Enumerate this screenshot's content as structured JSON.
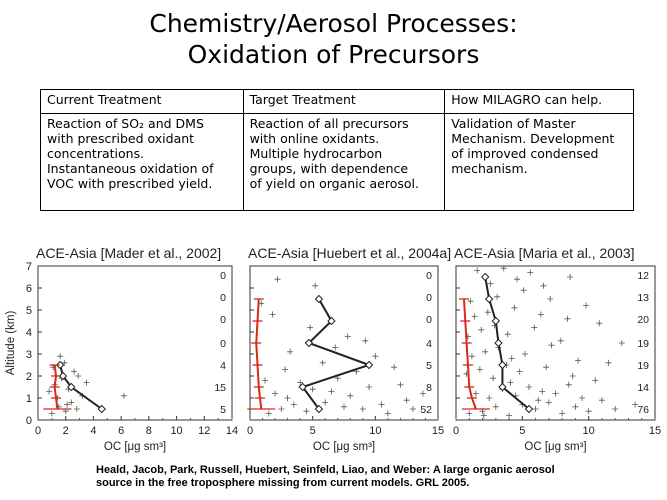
{
  "title": {
    "line1": "Chemistry/Aerosol Processes:",
    "line2": "Oxidation of Precursors"
  },
  "table": {
    "headers": [
      "Current Treatment",
      "Target Treatment",
      "How MILAGRO can help."
    ],
    "rows": [
      [
        [
          "Reaction of SO₂ and DMS",
          "with prescribed oxidant",
          "concentrations.",
          "Instantaneous oxidation of",
          "VOC with prescribed yield."
        ],
        [
          "Reaction of all precursors",
          "with online oxidants.",
          "Multiple hydrocarbon",
          "groups, with dependence",
          "of yield on organic aerosol."
        ],
        [
          "Validation of Master",
          "Mechanism. Development",
          "of improved condensed",
          "mechanism."
        ]
      ]
    ]
  },
  "colors": {
    "model": "#d62a1a",
    "observed": "#222222",
    "points": "#555555"
  },
  "chart_data": [
    {
      "type": "scatter",
      "title": "ACE-Asia [Mader et al., 2002]",
      "xlabel": "OC [μg sm³]",
      "ylabel": "Altitude (km)",
      "xlim": [
        0,
        14
      ],
      "ylim": [
        0,
        7
      ],
      "xticks": [
        "0",
        "2",
        "4",
        "6",
        "8",
        "10",
        "12",
        "14"
      ],
      "yticks": [
        "0",
        "1",
        "2",
        "3",
        "4",
        "5",
        "6",
        "7"
      ],
      "counts": [
        {
          "alt": 6.6,
          "n": "0"
        },
        {
          "alt": 5.6,
          "n": "0"
        },
        {
          "alt": 4.6,
          "n": "0"
        },
        {
          "alt": 3.5,
          "n": "0"
        },
        {
          "alt": 2.5,
          "n": "4"
        },
        {
          "alt": 1.5,
          "n": "15"
        },
        {
          "alt": 0.5,
          "n": "5"
        }
      ],
      "observed": {
        "x": [
          4.6,
          2.4,
          1.8,
          1.6
        ],
        "y": [
          0.5,
          1.5,
          2.0,
          2.5
        ]
      },
      "model": {
        "x": [
          1.4,
          1.3,
          1.2,
          1.3,
          1.2
        ],
        "y": [
          0.5,
          1.0,
          1.5,
          2.0,
          2.5
        ]
      },
      "scatter": {
        "x": [
          1.0,
          1.5,
          2.0,
          2.4,
          2.8,
          3.2,
          0.8,
          1.2,
          1.7,
          2.2,
          2.6,
          3.5,
          1.1,
          1.9,
          2.9,
          1.4,
          2.1,
          6.2,
          1.6
        ],
        "y": [
          0.3,
          0.6,
          0.4,
          0.8,
          0.5,
          1.1,
          1.3,
          1.6,
          1.9,
          1.4,
          2.2,
          1.7,
          2.4,
          2.6,
          2.0,
          1.0,
          0.7,
          1.1,
          2.9
        ]
      }
    },
    {
      "type": "scatter",
      "title": "ACE-Asia [Huebert et al., 2004a]",
      "xlabel": "OC [μg sm³]",
      "ylabel": "",
      "xlim": [
        0,
        15
      ],
      "ylim": [
        0,
        7
      ],
      "xticks": [
        "0",
        "5",
        "10",
        "15"
      ],
      "yticks": [],
      "counts": [
        {
          "alt": 6.6,
          "n": "0"
        },
        {
          "alt": 5.6,
          "n": "0"
        },
        {
          "alt": 4.6,
          "n": "0"
        },
        {
          "alt": 3.5,
          "n": "4"
        },
        {
          "alt": 2.5,
          "n": "5"
        },
        {
          "alt": 1.5,
          "n": "8"
        },
        {
          "alt": 0.5,
          "n": "52"
        }
      ],
      "observed": {
        "x": [
          5.5,
          4.2,
          9.5,
          4.7,
          6.5,
          5.5
        ],
        "y": [
          0.5,
          1.5,
          2.5,
          3.5,
          4.5,
          5.5
        ]
      },
      "model": {
        "x": [
          0.9,
          0.8,
          0.7,
          0.6,
          0.5,
          0.6,
          0.7
        ],
        "y": [
          0.5,
          1.0,
          1.5,
          2.5,
          3.5,
          4.5,
          5.5
        ]
      },
      "scatter": {
        "x": [
          1.5,
          2.5,
          3.5,
          4.5,
          6.0,
          7.5,
          9.0,
          11.0,
          12.5,
          2.0,
          3.0,
          5.0,
          6.5,
          8.0,
          10.5,
          13.0,
          1.2,
          4.0,
          7.0,
          9.5,
          12.0,
          2.8,
          5.8,
          8.5,
          11.5,
          3.2,
          6.8,
          10.0,
          4.8,
          7.8,
          1.8,
          13.8,
          0.9,
          2.2,
          5.2,
          9.2
        ],
        "y": [
          0.3,
          0.5,
          0.7,
          0.4,
          0.8,
          0.6,
          0.5,
          0.3,
          0.9,
          1.2,
          1.0,
          1.4,
          1.3,
          1.1,
          0.7,
          0.5,
          1.8,
          1.7,
          1.9,
          1.5,
          1.6,
          2.3,
          2.6,
          2.2,
          2.4,
          3.1,
          3.3,
          2.9,
          4.2,
          3.8,
          4.8,
          1.2,
          5.3,
          6.4,
          6.1,
          3.6
        ]
      }
    },
    {
      "type": "scatter",
      "title": "ACE-Asia [Maria et al., 2003]",
      "xlabel": "OC [μg sm³]",
      "ylabel": "",
      "xlim": [
        0,
        15
      ],
      "ylim": [
        0,
        7
      ],
      "xticks": [
        "0",
        "5",
        "10",
        "15"
      ],
      "yticks": [],
      "counts": [
        {
          "alt": 6.6,
          "n": "12"
        },
        {
          "alt": 5.6,
          "n": "13"
        },
        {
          "alt": 4.6,
          "n": "20"
        },
        {
          "alt": 3.5,
          "n": "19"
        },
        {
          "alt": 2.5,
          "n": "19"
        },
        {
          "alt": 1.5,
          "n": "14"
        },
        {
          "alt": 0.5,
          "n": "76"
        }
      ],
      "observed": {
        "x": [
          5.5,
          3.5,
          3.5,
          3.2,
          3.0,
          2.5,
          2.2
        ],
        "y": [
          0.5,
          1.5,
          2.5,
          3.5,
          4.5,
          5.5,
          6.5
        ]
      },
      "model": {
        "x": [
          1.5,
          1.2,
          1.0,
          0.9,
          0.8,
          0.7,
          0.6
        ],
        "y": [
          0.5,
          1.0,
          1.5,
          2.5,
          3.5,
          4.5,
          5.5
        ]
      },
      "scatter": {
        "x": [
          1.0,
          2.0,
          3.0,
          4.0,
          5.0,
          6.0,
          7.0,
          8.0,
          9.0,
          10.0,
          11.0,
          12.0,
          13.5,
          1.5,
          2.5,
          3.5,
          4.5,
          5.5,
          6.5,
          7.5,
          8.5,
          9.5,
          0.8,
          1.8,
          2.8,
          3.8,
          4.8,
          6.8,
          8.8,
          10.5,
          1.2,
          2.2,
          3.2,
          4.2,
          5.2,
          7.2,
          9.2,
          0.9,
          1.9,
          2.9,
          3.9,
          5.9,
          7.9,
          1.4,
          2.4,
          4.4,
          6.4,
          8.4,
          1.1,
          3.1,
          5.1,
          7.1,
          9.8,
          2.6,
          4.6,
          6.6,
          8.6,
          1.6,
          3.6,
          5.6,
          11.5,
          12.5,
          10.8,
          6.2,
          4.1,
          2.1
        ],
        "y": [
          0.3,
          0.4,
          0.6,
          0.2,
          0.7,
          0.5,
          0.8,
          0.3,
          0.6,
          0.4,
          0.9,
          0.5,
          0.7,
          1.2,
          1.0,
          1.4,
          1.1,
          1.5,
          1.3,
          1.2,
          1.6,
          1.0,
          2.1,
          2.3,
          1.9,
          2.5,
          2.2,
          2.4,
          2.0,
          1.8,
          2.9,
          3.1,
          3.3,
          2.8,
          3.0,
          3.4,
          2.7,
          3.8,
          4.1,
          4.3,
          3.9,
          4.2,
          3.6,
          4.7,
          4.9,
          5.1,
          4.8,
          4.6,
          5.4,
          5.6,
          5.9,
          5.5,
          5.2,
          6.2,
          6.4,
          6.1,
          6.5,
          6.8,
          6.9,
          6.7,
          2.6,
          3.5,
          4.4,
          0.9,
          1.7,
          0.2
        ]
      }
    }
  ],
  "citation": {
    "line1": "Heald, Jacob, Park, Russell, Huebert, Seinfeld, Liao, and Weber: A large organic aerosol",
    "line2": "source in the free troposphere missing from current models. GRL 2005."
  }
}
